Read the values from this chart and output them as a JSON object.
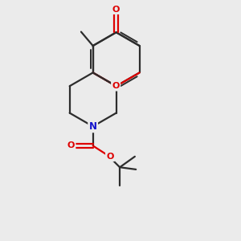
{
  "bg_color": "#ebebeb",
  "bond_color": "#2d2d2d",
  "o_color": "#dd0000",
  "n_color": "#1414cc",
  "line_width": 1.6,
  "figsize": [
    3.0,
    3.0
  ],
  "dpi": 100,
  "xlim": [
    0,
    10
  ],
  "ylim": [
    0,
    11
  ]
}
